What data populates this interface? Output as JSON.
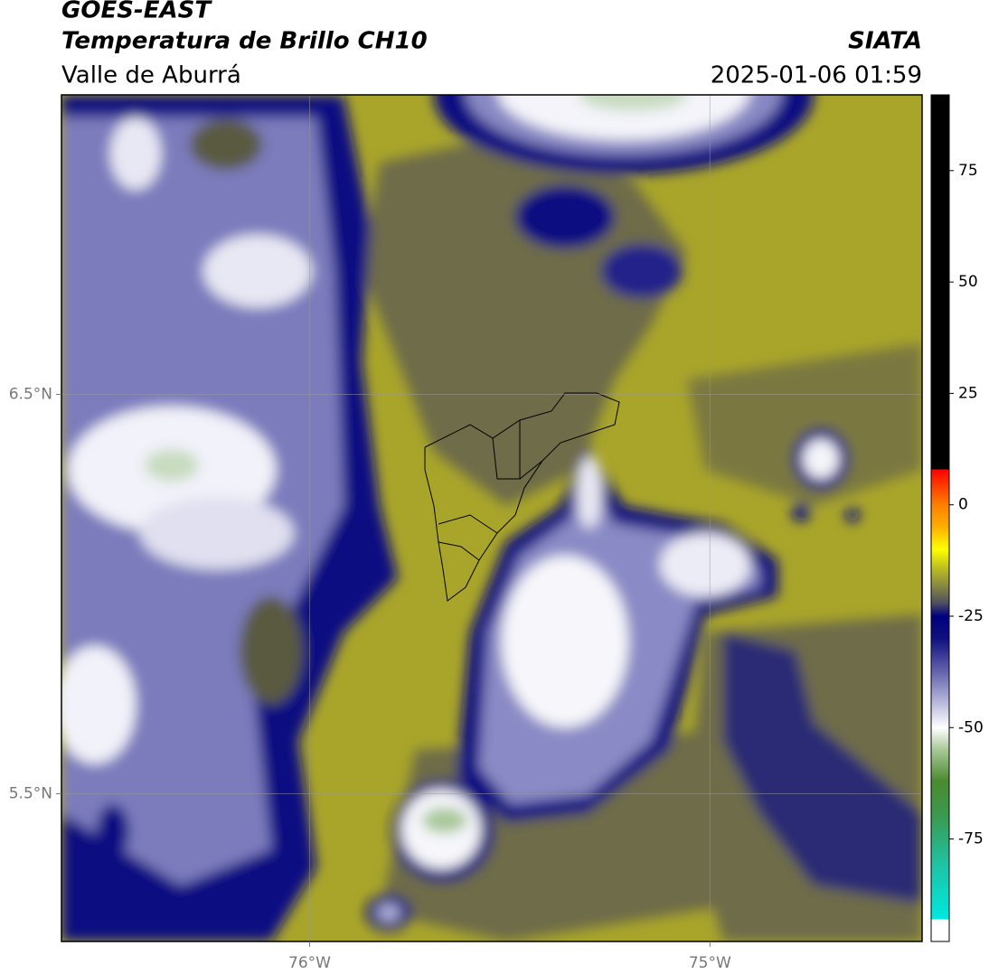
{
  "header": {
    "title": "GOES-EAST",
    "subtitle": "Temperatura de Brillo CH10",
    "source": "SIATA",
    "region": "Valle de Aburrá",
    "datetime": "2025-01-06 01:59"
  },
  "map": {
    "xlim": [
      -76.62,
      -74.47
    ],
    "ylim": [
      5.13,
      7.25
    ],
    "xticks": [
      {
        "value": -76,
        "label": "76°W"
      },
      {
        "value": -75,
        "label": "75°W"
      }
    ],
    "yticks": [
      {
        "value": 6.5,
        "label": "6.5°N"
      },
      {
        "value": 5.5,
        "label": "5.5°N"
      }
    ],
    "grid": true
  },
  "colorbar": {
    "lim": [
      -98,
      92
    ],
    "ticks": [
      75,
      50,
      25,
      0,
      -25,
      -50,
      -75
    ],
    "stops": [
      {
        "value": -98,
        "color": "#ffffff"
      },
      {
        "value": -93,
        "color": "#ffffff"
      },
      {
        "value": -93,
        "color": "#00e8e0"
      },
      {
        "value": -80,
        "color": "#20c0a0"
      },
      {
        "value": -70,
        "color": "#3a9a50"
      },
      {
        "value": -62,
        "color": "#4a8a30"
      },
      {
        "value": -55,
        "color": "#a8c898"
      },
      {
        "value": -50,
        "color": "#ffffff"
      },
      {
        "value": -45,
        "color": "#c0c0e0"
      },
      {
        "value": -38,
        "color": "#6a6ab0"
      },
      {
        "value": -30,
        "color": "#101080"
      },
      {
        "value": -25,
        "color": "#000080"
      },
      {
        "value": -22,
        "color": "#505060"
      },
      {
        "value": -18,
        "color": "#8a8a40"
      },
      {
        "value": -14,
        "color": "#c0c020"
      },
      {
        "value": -10,
        "color": "#ffff00"
      },
      {
        "value": -5,
        "color": "#ffb000"
      },
      {
        "value": 0,
        "color": "#ff8000"
      },
      {
        "value": 5,
        "color": "#ff3000"
      },
      {
        "value": 8,
        "color": "#ff0000"
      },
      {
        "value": 8,
        "color": "#000000"
      },
      {
        "value": 92,
        "color": "#000000"
      }
    ]
  }
}
